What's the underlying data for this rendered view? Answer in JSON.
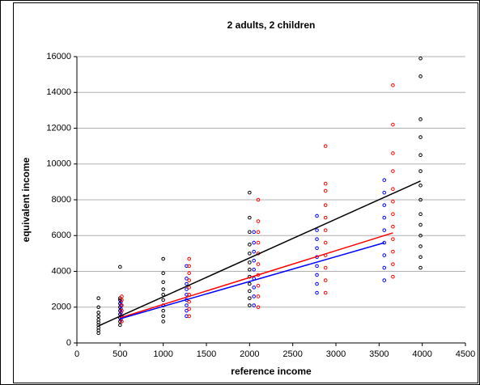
{
  "chart_data": {
    "type": "scatter",
    "title": "2 adults, 2 children",
    "x_label": "reference income",
    "y_label": "equivalent income",
    "xlim": [
      0,
      4500
    ],
    "xticks": [
      0,
      500,
      1000,
      1500,
      2000,
      2500,
      3000,
      3500,
      4000,
      4500
    ],
    "ylim": [
      0,
      16000
    ],
    "yticks": [
      0,
      2000,
      4000,
      6000,
      8000,
      10000,
      12000,
      14000,
      16000
    ],
    "grid": true,
    "series": [
      {
        "color": "#000000",
        "mode": "markers",
        "x": [
          250,
          250,
          250,
          250,
          250,
          250,
          250,
          250,
          250,
          250,
          500,
          500,
          500,
          500,
          500,
          500,
          500,
          500,
          500,
          500,
          1000,
          1000,
          1000,
          1000,
          1000,
          1000,
          1000,
          1000,
          1000,
          1000,
          2000,
          2000,
          2000,
          2000,
          2000,
          2000,
          2000,
          2000,
          2000,
          2000,
          2000,
          2000,
          3980,
          3980,
          3980,
          3980,
          3980,
          3980,
          3980,
          3980,
          3980,
          3980,
          3980,
          3980,
          3980,
          3980
        ],
        "values": [
          550,
          700,
          850,
          1000,
          1150,
          1300,
          1500,
          1700,
          2000,
          2500,
          1000,
          1200,
          1400,
          1600,
          1800,
          2000,
          2200,
          2400,
          2500,
          4250,
          1200,
          1500,
          1800,
          2100,
          2400,
          2700,
          3000,
          3400,
          3900,
          4700,
          2100,
          2500,
          2900,
          3300,
          3700,
          4100,
          4500,
          5000,
          5500,
          6200,
          7000,
          8400,
          4200,
          4800,
          5400,
          6000,
          6600,
          7200,
          8000,
          8800,
          9600,
          10500,
          11500,
          12500,
          14900,
          15900
        ]
      },
      {
        "color": "#0000ff",
        "mode": "markers",
        "x": [
          510,
          510,
          510,
          510,
          510,
          510,
          1270,
          1270,
          1270,
          1270,
          1270,
          1270,
          1270,
          1270,
          1270,
          2050,
          2050,
          2050,
          2050,
          2050,
          2050,
          2050,
          2050,
          2050,
          2780,
          2780,
          2780,
          2780,
          2780,
          2780,
          2780,
          2780,
          2780,
          3560,
          3560,
          3560,
          3560,
          3560,
          3560,
          3560,
          3560,
          3560
        ],
        "values": [
          1300,
          1500,
          1700,
          1900,
          2100,
          2300,
          1500,
          1800,
          2100,
          2400,
          2700,
          3000,
          3300,
          3600,
          4300,
          2100,
          2600,
          3100,
          3600,
          4100,
          4600,
          5100,
          5600,
          6200,
          2800,
          3300,
          3800,
          4300,
          4800,
          5300,
          5800,
          6300,
          7100,
          3500,
          4200,
          4900,
          5600,
          6300,
          7000,
          7700,
          8400,
          9100
        ]
      },
      {
        "color": "#ff0000",
        "mode": "markers",
        "x": [
          520,
          520,
          520,
          520,
          520,
          520,
          1300,
          1300,
          1300,
          1300,
          1300,
          1300,
          1300,
          1300,
          1300,
          2100,
          2100,
          2100,
          2100,
          2100,
          2100,
          2100,
          2100,
          2100,
          2100,
          2880,
          2880,
          2880,
          2880,
          2880,
          2880,
          2880,
          2880,
          2880,
          2880,
          2880,
          3660,
          3660,
          3660,
          3660,
          3660,
          3660,
          3660,
          3660,
          3660,
          3660,
          3660,
          3660
        ],
        "values": [
          1200,
          1500,
          1800,
          2100,
          2400,
          2600,
          1500,
          1900,
          2300,
          2700,
          3100,
          3500,
          3900,
          4300,
          4700,
          2000,
          2600,
          3200,
          3800,
          4400,
          5000,
          5600,
          6200,
          6800,
          8000,
          2800,
          3500,
          4200,
          4900,
          5600,
          6300,
          7000,
          7700,
          8500,
          8900,
          11000,
          3700,
          4400,
          5100,
          5800,
          6500,
          7200,
          7900,
          8600,
          9600,
          10600,
          12200,
          14400
        ]
      },
      {
        "color": "#000000",
        "mode": "line",
        "x": [
          250,
          3980
        ],
        "values": [
          950,
          9050
        ]
      },
      {
        "color": "#ff0000",
        "mode": "line",
        "x": [
          500,
          3660
        ],
        "values": [
          1400,
          6150
        ]
      },
      {
        "color": "#0000ff",
        "mode": "line",
        "x": [
          500,
          3560
        ],
        "values": [
          1350,
          5600
        ]
      }
    ]
  }
}
